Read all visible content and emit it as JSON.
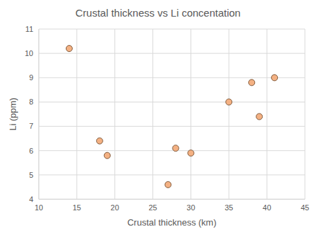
{
  "chart_data": {
    "type": "scatter",
    "title": "Crustal thickness vs Li concentation",
    "x_label": "Crustal thickness (km)",
    "y_label": "Li (ppm)",
    "x": [
      14,
      18,
      19,
      27,
      28,
      30,
      35,
      38,
      39,
      41
    ],
    "values": [
      10.2,
      6.4,
      5.8,
      4.6,
      6.1,
      5.9,
      8.0,
      8.8,
      7.4,
      9.0
    ],
    "color": "#f4b183",
    "marker": "circle",
    "xlim": [
      10,
      45
    ],
    "xticks": [
      10,
      15,
      20,
      25,
      30,
      35,
      40,
      45
    ],
    "ylim": [
      4,
      11
    ],
    "yticks": [
      4,
      5,
      6,
      7,
      8,
      9,
      10,
      11
    ],
    "grid": true
  }
}
